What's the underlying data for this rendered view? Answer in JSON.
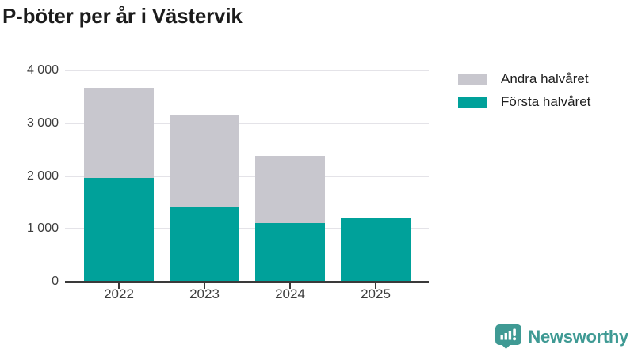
{
  "title": "P-böter per år i Västervik",
  "legend": [
    {
      "label": "Andra halvåret",
      "color": "#c8c7ce"
    },
    {
      "label": "Första halvåret",
      "color": "#00a19a"
    }
  ],
  "chart_data": {
    "type": "bar",
    "stacked": true,
    "title": "P-böter per år i Västervik",
    "categories": [
      "2022",
      "2023",
      "2024",
      "2025"
    ],
    "series": [
      {
        "name": "Första halvåret",
        "color": "#00a19a",
        "values": [
          1960,
          1410,
          1110,
          1220
        ]
      },
      {
        "name": "Andra halvåret",
        "color": "#c8c7ce",
        "values": [
          1715,
          1755,
          1270,
          0
        ]
      }
    ],
    "totals": [
      3675,
      3165,
      2380,
      1220
    ],
    "ylim": [
      0,
      4000
    ],
    "yticks": [
      0,
      1000,
      2000,
      3000,
      4000
    ],
    "ytick_labels": [
      "0",
      "1 000",
      "2 000",
      "3 000",
      "4 000"
    ],
    "xlabel": "",
    "ylabel": "",
    "grid": "horizontal",
    "legend_position": "top-right"
  },
  "branding": {
    "logo_text": "Newsworthy",
    "logo_color": "#3f9a94",
    "logo_icon": "bar-chart-speech-bubble-icon"
  }
}
